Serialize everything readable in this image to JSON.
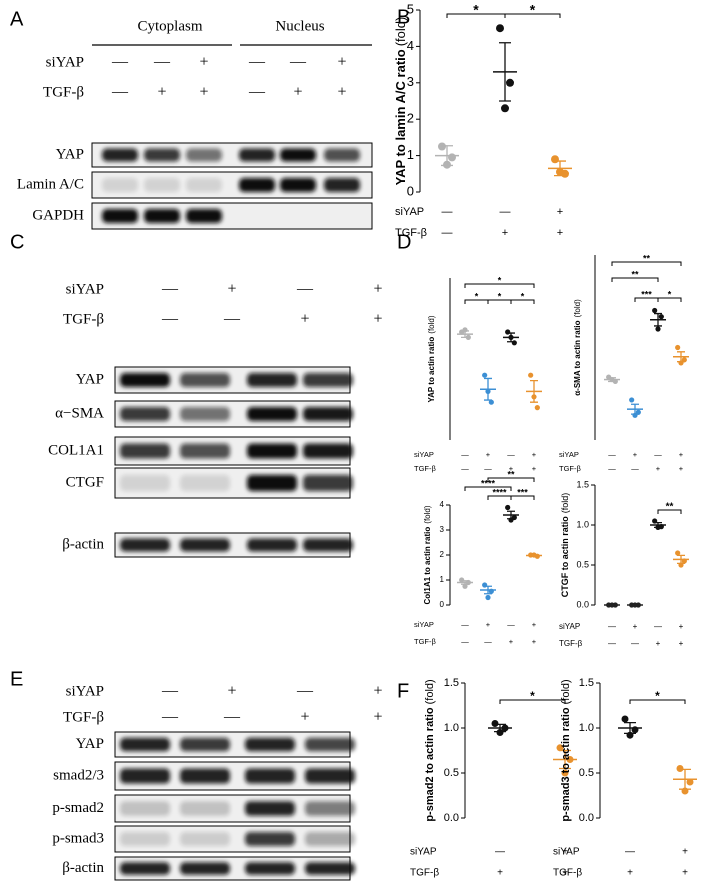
{
  "panels": [
    "A",
    "B",
    "C",
    "D",
    "E",
    "F"
  ],
  "blots": [
    {
      "header": [
        "Cytoplasm",
        "Nucleus"
      ],
      "conditions": [
        {
          "name": "siYAP",
          "signs": [
            "—",
            "—",
            "+",
            "—",
            "—",
            "+"
          ]
        },
        {
          "name": "TGF-β",
          "signs": [
            "—",
            "+",
            "+",
            "—",
            "+",
            "+"
          ]
        }
      ],
      "rows": [
        "YAP",
        "Lamin A/C",
        "GAPDH"
      ]
    },
    {
      "conditions": [
        {
          "name": "siYAP",
          "signs": [
            "—",
            "+",
            "—",
            "+"
          ]
        },
        {
          "name": "TGF-β",
          "signs": [
            "—",
            "—",
            "+",
            "+"
          ]
        }
      ],
      "rows": [
        "YAP",
        "α−SMA",
        "COL1A1",
        "CTGF",
        "β-actin"
      ]
    },
    {
      "conditions": [
        {
          "name": "siYAP",
          "signs": [
            "—",
            "+",
            "—",
            "+"
          ]
        },
        {
          "name": "TGF-β",
          "signs": [
            "—",
            "—",
            "+",
            "+"
          ]
        }
      ],
      "rows": [
        "YAP",
        "smad2/3",
        "p-smad2",
        "p-smad3",
        "β-actin"
      ]
    }
  ],
  "chart_data": [
    {
      "type": "dot",
      "ylabel": "YAP to lamin A/C ratio",
      "ylabel_unit": "(fold)",
      "ylim": [
        0,
        5
      ],
      "yticks": [
        0,
        1,
        2,
        3,
        4,
        5
      ],
      "groups": [
        {
          "color": "#b3b3b3",
          "points": [
            1.25,
            0.95,
            0.75
          ],
          "mean": 1.0,
          "sem": 0.27
        },
        {
          "color": "#111111",
          "points": [
            4.5,
            3.0,
            2.3
          ],
          "mean": 3.3,
          "sem": 0.8
        },
        {
          "color": "#e8922e",
          "points": [
            0.9,
            0.5,
            0.55
          ],
          "mean": 0.65,
          "sem": 0.2
        }
      ],
      "brackets": [
        {
          "from": 0,
          "to": 1,
          "label": "*"
        },
        {
          "from": 1,
          "to": 2,
          "label": "*"
        }
      ],
      "conditions": [
        {
          "name": "siYAP",
          "signs": [
            "—",
            "—",
            "+"
          ]
        },
        {
          "name": "TGF-β",
          "signs": [
            "—",
            "+",
            "+"
          ]
        }
      ]
    },
    {
      "type": "dot",
      "ylabel": "YAP to actin ratio",
      "ylabel_unit": "(fold)",
      "ylim": [
        0,
        1.5
      ],
      "groups": [
        {
          "color": "#b3b3b3",
          "points": [
            1.0,
            0.95,
            1.02
          ],
          "mean": 0.98,
          "sem": 0.03
        },
        {
          "color": "#3c8fd4",
          "points": [
            0.6,
            0.35,
            0.45
          ],
          "mean": 0.47,
          "sem": 0.1
        },
        {
          "color": "#111111",
          "points": [
            1.0,
            0.9,
            0.95
          ],
          "mean": 0.95,
          "sem": 0.04
        },
        {
          "color": "#e8922e",
          "points": [
            0.6,
            0.3,
            0.4
          ],
          "mean": 0.45,
          "sem": 0.1
        }
      ],
      "brackets": [
        {
          "from": 0,
          "to": 1,
          "label": "*"
        },
        {
          "from": 1,
          "to": 2,
          "label": "*"
        },
        {
          "from": 2,
          "to": 3,
          "label": "*"
        },
        {
          "from": 0,
          "to": 3,
          "label": "*"
        }
      ],
      "conditions": [
        {
          "name": "siYAP",
          "signs": [
            "—",
            "+",
            "—",
            "+"
          ]
        },
        {
          "name": "TGF-β",
          "signs": [
            "—",
            "—",
            "+",
            "+"
          ]
        }
      ]
    },
    {
      "type": "dot",
      "ylabel": "α-SMA to actin ratio",
      "ylabel_unit": "(fold)",
      "ylim": [
        0,
        3
      ],
      "groups": [
        {
          "color": "#b3b3b3",
          "points": [
            1.02,
            0.95,
            0.98
          ],
          "mean": 0.98,
          "sem": 0.03
        },
        {
          "color": "#3c8fd4",
          "points": [
            0.65,
            0.45,
            0.4
          ],
          "mean": 0.5,
          "sem": 0.08
        },
        {
          "color": "#111111",
          "points": [
            2.1,
            2.0,
            1.8
          ],
          "mean": 1.95,
          "sem": 0.1
        },
        {
          "color": "#e8922e",
          "points": [
            1.5,
            1.3,
            1.25
          ],
          "mean": 1.35,
          "sem": 0.08
        }
      ],
      "brackets": [
        {
          "from": 0,
          "to": 3,
          "label": "**"
        },
        {
          "from": 0,
          "to": 2,
          "label": "**"
        },
        {
          "from": 1,
          "to": 2,
          "label": "***"
        },
        {
          "from": 2,
          "to": 3,
          "label": "*"
        }
      ],
      "conditions": [
        {
          "name": "siYAP",
          "signs": [
            "—",
            "+",
            "—",
            "+"
          ]
        },
        {
          "name": "TGF-β",
          "signs": [
            "—",
            "—",
            "+",
            "+"
          ]
        }
      ]
    },
    {
      "type": "dot",
      "ylabel": "Col1A1 to actin ratio",
      "ylabel_unit": "(fold)",
      "ylim": [
        0,
        4
      ],
      "yticks": [
        0,
        1,
        2,
        3,
        4
      ],
      "groups": [
        {
          "color": "#b3b3b3",
          "points": [
            1.0,
            0.9,
            0.75
          ],
          "mean": 0.9,
          "sem": 0.07
        },
        {
          "color": "#3c8fd4",
          "points": [
            0.8,
            0.55,
            0.3
          ],
          "mean": 0.6,
          "sem": 0.15
        },
        {
          "color": "#111111",
          "points": [
            3.9,
            3.5,
            3.4
          ],
          "mean": 3.6,
          "sem": 0.15
        },
        {
          "color": "#e8922e",
          "points": [
            2.0,
            1.95,
            2.0
          ],
          "mean": 1.98,
          "sem": 0.02
        }
      ],
      "brackets": [
        {
          "from": 0,
          "to": 2,
          "label": "****"
        },
        {
          "from": 1,
          "to": 2,
          "label": "****"
        },
        {
          "from": 2,
          "to": 3,
          "label": "***"
        },
        {
          "from": 1,
          "to": 3,
          "label": "**"
        }
      ],
      "conditions": [
        {
          "name": "siYAP",
          "signs": [
            "—",
            "+",
            "—",
            "+"
          ]
        },
        {
          "name": "TGF-β",
          "signs": [
            "—",
            "—",
            "+",
            "+"
          ]
        }
      ]
    },
    {
      "type": "dot",
      "ylabel": "CTGF to actin ratio",
      "ylabel_unit": "(fold)",
      "ylim": [
        0,
        1.5
      ],
      "yticks": [
        {
          "value": 0,
          "label": "0.0"
        },
        {
          "value": 0.5,
          "label": "0.5"
        },
        {
          "value": 1,
          "label": "1.0"
        },
        {
          "value": 1.5,
          "label": "1.5"
        }
      ],
      "groups": [
        {
          "color": "#222222",
          "points": [
            0,
            0,
            0
          ],
          "mean": 0,
          "sem": 0
        },
        {
          "color": "#222222",
          "points": [
            0,
            0,
            0
          ],
          "mean": 0,
          "sem": 0
        },
        {
          "color": "#111111",
          "points": [
            1.05,
            0.98,
            0.97
          ],
          "mean": 1.0,
          "sem": 0.03
        },
        {
          "color": "#e8922e",
          "points": [
            0.65,
            0.55,
            0.5
          ],
          "mean": 0.57,
          "sem": 0.05
        }
      ],
      "brackets": [
        {
          "from": 2,
          "to": 3,
          "label": "**"
        }
      ],
      "conditions": [
        {
          "name": "siYAP",
          "signs": [
            "—",
            "+",
            "—",
            "+"
          ]
        },
        {
          "name": "TGF-β",
          "signs": [
            "—",
            "—",
            "+",
            "+"
          ]
        }
      ]
    },
    {
      "type": "dot",
      "ylabel": "p-smad2 to actin ratio",
      "ylabel_unit": "(fold)",
      "ylim": [
        0,
        1.5
      ],
      "yticks": [
        {
          "value": 0,
          "label": "0.0"
        },
        {
          "value": 0.5,
          "label": "0.5"
        },
        {
          "value": 1,
          "label": "1.0"
        },
        {
          "value": 1.5,
          "label": "1.5"
        }
      ],
      "groups": [
        {
          "color": "#111111",
          "points": [
            1.05,
            1.0,
            0.95
          ],
          "mean": 1.0,
          "sem": 0.04
        },
        {
          "color": "#e8922e",
          "points": [
            0.78,
            0.65,
            0.5
          ],
          "mean": 0.65,
          "sem": 0.1
        }
      ],
      "brackets": [
        {
          "from": 0,
          "to": 1,
          "label": "*"
        }
      ],
      "conditions": [
        {
          "name": "siYAP",
          "signs": [
            "—",
            "+"
          ]
        },
        {
          "name": "TGF-β",
          "signs": [
            "+",
            "+"
          ]
        }
      ]
    },
    {
      "type": "dot",
      "ylabel": "p-smad3 to actin ratio",
      "ylabel_unit": "(fold)",
      "ylim": [
        0,
        1.5
      ],
      "yticks": [
        {
          "value": 0,
          "label": "0.0"
        },
        {
          "value": 0.5,
          "label": "0.5"
        },
        {
          "value": 1,
          "label": "1.0"
        },
        {
          "value": 1.5,
          "label": "1.5"
        }
      ],
      "groups": [
        {
          "color": "#111111",
          "points": [
            1.1,
            0.98,
            0.92
          ],
          "mean": 1.0,
          "sem": 0.06
        },
        {
          "color": "#e8922e",
          "points": [
            0.55,
            0.4,
            0.3
          ],
          "mean": 0.43,
          "sem": 0.11
        }
      ],
      "brackets": [
        {
          "from": 0,
          "to": 1,
          "label": "*"
        }
      ],
      "conditions": [
        {
          "name": "siYAP",
          "signs": [
            "—",
            "+"
          ]
        },
        {
          "name": "TGF-β",
          "signs": [
            "+",
            "+"
          ]
        }
      ]
    }
  ]
}
